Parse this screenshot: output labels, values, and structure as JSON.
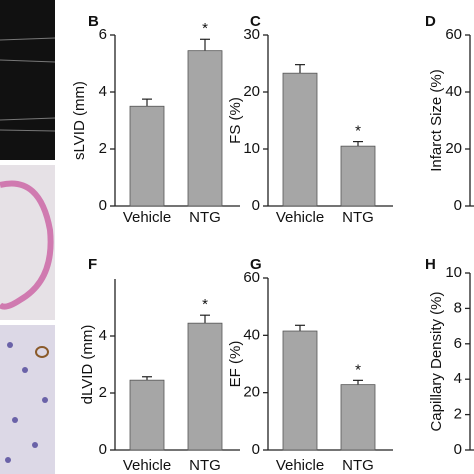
{
  "chart_data": [
    {
      "type": "bar",
      "panel": "B",
      "y_label": "sLVID (mm)",
      "categories": [
        "Vehicle",
        "NTG"
      ],
      "values": [
        3.5,
        5.45
      ],
      "errors": [
        0.25,
        0.4
      ],
      "annotation": "*",
      "color": "#a6a6a6",
      "ylim": [
        0,
        6
      ],
      "yticks": [
        0,
        2,
        4,
        6
      ]
    },
    {
      "type": "bar",
      "panel": "C",
      "y_label": "FS (%)",
      "categories": [
        "Vehicle",
        "NTG"
      ],
      "values": [
        23.3,
        10.5
      ],
      "errors": [
        1.5,
        0.8
      ],
      "annotation": "*",
      "color": "#a6a6a6",
      "ylim": [
        0,
        30
      ],
      "yticks": [
        0,
        10,
        20,
        30
      ]
    },
    {
      "type": "bar",
      "panel": "D",
      "y_label": "Infarct Size (%)",
      "categories": [],
      "values": [],
      "errors": [],
      "color": "#a6a6a6",
      "ylim": [
        0,
        60
      ],
      "yticks": [
        0,
        20,
        40,
        60
      ]
    },
    {
      "type": "bar",
      "panel": "F",
      "y_label": "dLVID (mm)",
      "categories": [
        "Vehicle",
        "NTG"
      ],
      "values": [
        2.45,
        4.45
      ],
      "errors": [
        0.12,
        0.28
      ],
      "annotation": "*",
      "color": "#a6a6a6",
      "ylim": [
        0,
        6
      ],
      "yticks": [
        0,
        2,
        4
      ]
    },
    {
      "type": "bar",
      "panel": "G",
      "y_label": "EF (%)",
      "categories": [
        "Vehicle",
        "NTG"
      ],
      "values": [
        41.5,
        22.8
      ],
      "errors": [
        2,
        1.5
      ],
      "annotation": "*",
      "color": "#a6a6a6",
      "ylim": [
        0,
        60
      ],
      "yticks": [
        0,
        20,
        40,
        60
      ]
    },
    {
      "type": "bar",
      "panel": "H",
      "y_label": "Capillary Density (%)",
      "categories": [],
      "values": [],
      "errors": [],
      "color": "#a6a6a6",
      "ylim": [
        0,
        10
      ],
      "yticks": [
        0,
        2,
        4,
        6,
        8,
        10
      ]
    }
  ]
}
